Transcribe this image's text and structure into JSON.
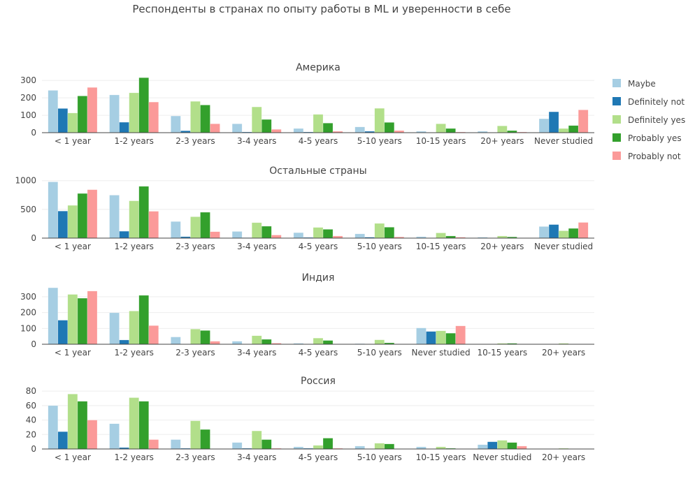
{
  "chart_data": [
    {
      "type": "bar",
      "title": "Америка",
      "categories": [
        "< 1 year",
        "1-2 years",
        "2-3 years",
        "3-4 years",
        "4-5 years",
        "5-10 years",
        "10-15 years",
        "20+ years",
        "Never studied"
      ],
      "ylim": [
        0,
        333
      ],
      "yticks": [
        0,
        100,
        200,
        300
      ],
      "series": [
        {
          "name": "Maybe",
          "values": [
            243,
            217,
            96,
            51,
            24,
            33,
            8,
            8,
            80
          ]
        },
        {
          "name": "Definitely not",
          "values": [
            139,
            60,
            11,
            4,
            4,
            8,
            1,
            1,
            120
          ]
        },
        {
          "name": "Definitely yes",
          "values": [
            113,
            229,
            180,
            148,
            105,
            140,
            51,
            39,
            24
          ]
        },
        {
          "name": "Probably yes",
          "values": [
            211,
            316,
            159,
            76,
            55,
            59,
            24,
            12,
            41
          ]
        },
        {
          "name": "Probably not",
          "values": [
            260,
            176,
            51,
            19,
            8,
            12,
            4,
            4,
            131
          ]
        }
      ]
    },
    {
      "type": "bar",
      "title": "Остальные страны",
      "categories": [
        "< 1 year",
        "1-2 years",
        "2-3 years",
        "3-4 years",
        "4-5 years",
        "5-10 years",
        "10-15 years",
        "20+ years",
        "Never studied"
      ],
      "ylim": [
        0,
        1045
      ],
      "yticks": [
        0,
        500,
        1000
      ],
      "series": [
        {
          "name": "Maybe",
          "values": [
            979,
            748,
            289,
            116,
            95,
            74,
            25,
            16,
            202
          ]
        },
        {
          "name": "Definitely not",
          "values": [
            471,
            120,
            25,
            8,
            12,
            16,
            4,
            4,
            236
          ]
        },
        {
          "name": "Definitely yes",
          "values": [
            570,
            649,
            372,
            269,
            186,
            256,
            91,
            37,
            128
          ]
        },
        {
          "name": "Probably yes",
          "values": [
            777,
            901,
            450,
            207,
            153,
            190,
            37,
            21,
            169
          ]
        },
        {
          "name": "Probably not",
          "values": [
            843,
            467,
            112,
            54,
            37,
            21,
            16,
            4,
            273
          ]
        }
      ]
    },
    {
      "type": "bar",
      "title": "Индия",
      "categories": [
        "< 1 year",
        "1-2 years",
        "2-3 years",
        "3-4 years",
        "4-5 years",
        "5-10 years",
        "Never studied",
        "10-15 years",
        "20+ years"
      ],
      "ylim": [
        0,
        375
      ],
      "yticks": [
        0,
        100,
        200,
        300
      ],
      "series": [
        {
          "name": "Maybe",
          "values": [
            357,
            199,
            46,
            19,
            6,
            4,
            103,
            0,
            0
          ]
        },
        {
          "name": "Definitely not",
          "values": [
            152,
            27,
            1,
            1,
            1,
            0,
            81,
            0,
            0
          ]
        },
        {
          "name": "Definitely yes",
          "values": [
            315,
            210,
            96,
            54,
            39,
            28,
            85,
            6,
            6
          ]
        },
        {
          "name": "Probably yes",
          "values": [
            291,
            309,
            87,
            31,
            24,
            9,
            70,
            6,
            1
          ]
        },
        {
          "name": "Probably not",
          "values": [
            336,
            118,
            19,
            7,
            1,
            0,
            116,
            1,
            1
          ]
        }
      ]
    },
    {
      "type": "bar",
      "title": "Россия",
      "categories": [
        "< 1 year",
        "1-2 years",
        "2-3 years",
        "3-4 years",
        "4-5 years",
        "5-10 years",
        "10-15 years",
        "Never studied",
        "20+ years"
      ],
      "ylim": [
        0,
        84
      ],
      "yticks": [
        0,
        20,
        40,
        60,
        80
      ],
      "series": [
        {
          "name": "Maybe",
          "values": [
            60,
            35,
            13,
            9,
            3,
            4,
            3,
            6,
            0
          ]
        },
        {
          "name": "Definitely not",
          "values": [
            24,
            2,
            1,
            1,
            1,
            0,
            0,
            10,
            0
          ]
        },
        {
          "name": "Definitely yes",
          "values": [
            76,
            71,
            39,
            25,
            5,
            8,
            3,
            12,
            1
          ]
        },
        {
          "name": "Probably yes",
          "values": [
            66,
            66,
            27,
            13,
            15,
            7,
            1,
            9,
            0
          ]
        },
        {
          "name": "Probably not",
          "values": [
            40,
            13,
            0,
            1,
            1,
            0,
            0,
            4,
            0
          ]
        }
      ]
    }
  ],
  "title": "Респонденты в странах по опыту работы в ML и уверенности в себе",
  "legend": {
    "placement": "right",
    "items": [
      "Maybe",
      "Definitely not",
      "Definitely yes",
      "Probably yes",
      "Probably not"
    ]
  },
  "colors": [
    "#a6cee3",
    "#1f78b4",
    "#b2df8a",
    "#33a02c",
    "#fb9a99"
  ],
  "grid": true
}
